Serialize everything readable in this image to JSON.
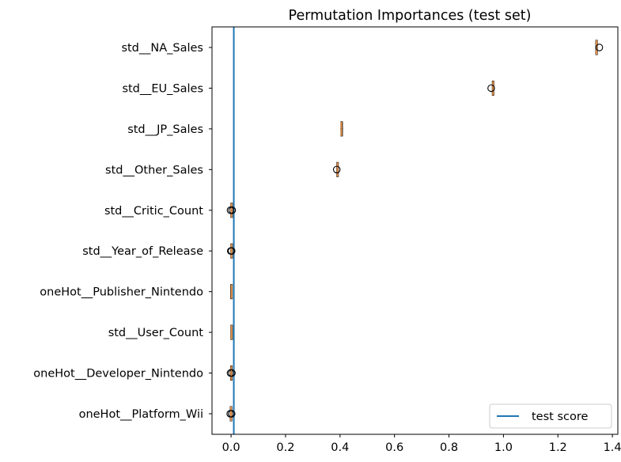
{
  "chart_data": {
    "type": "boxplot",
    "title": "Permutation Importances (test set)",
    "orientation": "horizontal",
    "categories": [
      "std__NA_Sales",
      "std__EU_Sales",
      "std__JP_Sales",
      "std__Other_Sales",
      "std__Critic_Count",
      "std__Year_of_Release",
      "oneHot__Publisher_Nintendo",
      "std__User_Count",
      "oneHot__Developer_Nintendo",
      "oneHot__Platform_Wii"
    ],
    "boxes": [
      {
        "q1": 1.34,
        "median": 1.342,
        "q3": 1.344,
        "whisker_low": 1.338,
        "whisker_high": 1.346,
        "outliers": [
          1.352
        ]
      },
      {
        "q1": 0.96,
        "median": 0.962,
        "q3": 0.964,
        "whisker_low": 0.958,
        "whisker_high": 0.966,
        "outliers": [
          0.955
        ]
      },
      {
        "q1": 0.403,
        "median": 0.405,
        "q3": 0.409,
        "whisker_low": 0.401,
        "whisker_high": 0.411,
        "outliers": []
      },
      {
        "q1": 0.39,
        "median": 0.391,
        "q3": 0.392,
        "whisker_low": 0.389,
        "whisker_high": 0.393,
        "outliers": [
          0.388
        ]
      },
      {
        "q1": 0.001,
        "median": 0.002,
        "q3": 0.003,
        "whisker_low": 0.0,
        "whisker_high": 0.004,
        "outliers": [
          -0.002,
          0.004
        ]
      },
      {
        "q1": 0.001,
        "median": 0.002,
        "q3": 0.003,
        "whisker_low": 0.0,
        "whisker_high": 0.004,
        "outliers": [
          -0.001,
          0.002
        ]
      },
      {
        "q1": 0.001,
        "median": 0.002,
        "q3": 0.002,
        "whisker_low": 0.0,
        "whisker_high": 0.003,
        "outliers": []
      },
      {
        "q1": 0.001,
        "median": 0.002,
        "q3": 0.003,
        "whisker_low": 0.0,
        "whisker_high": 0.004,
        "outliers": []
      },
      {
        "q1": 0.0,
        "median": 0.001,
        "q3": 0.002,
        "whisker_low": -0.001,
        "whisker_high": 0.003,
        "outliers": [
          -0.002,
          0.003
        ]
      },
      {
        "q1": -0.001,
        "median": 0.0,
        "q3": 0.001,
        "whisker_low": -0.002,
        "whisker_high": 0.002,
        "outliers": [
          -0.003,
          0.002
        ]
      }
    ],
    "reference_line": {
      "value": 0.01,
      "label": "test score",
      "color": "#1f77b4"
    },
    "xlim": [
      -0.07,
      1.42
    ],
    "xticks": [
      0.0,
      0.2,
      0.4,
      0.6,
      0.8,
      1.0,
      1.2,
      1.4
    ],
    "xtick_labels": [
      "0.0",
      "0.2",
      "0.4",
      "0.6",
      "0.8",
      "1.0",
      "1.2",
      "1.4"
    ],
    "xlabel": "",
    "ylabel": "",
    "grid": false,
    "legend": {
      "position": "lower-right",
      "entries": [
        "test score"
      ]
    },
    "colors": {
      "box": "#e08f4a",
      "median": "#000000",
      "outlier": "#000000",
      "reference": "#1f77b4"
    }
  }
}
